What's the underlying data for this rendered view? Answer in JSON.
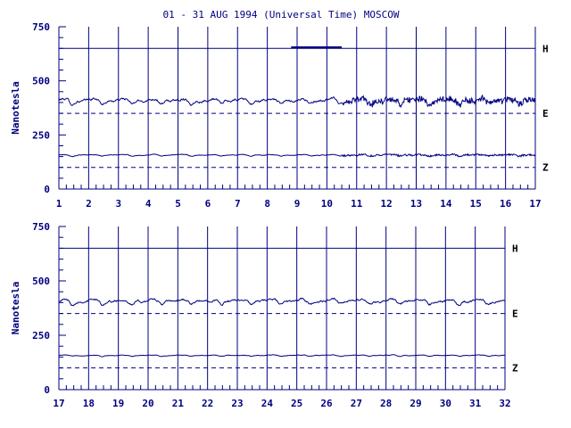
{
  "title": "01 - 31 AUG 1994 (Universal Time) MOSCOW",
  "colors": {
    "ink": "#000080",
    "label": "#000000",
    "background": "#ffffff"
  },
  "chart_data": [
    {
      "type": "line",
      "ylabel": "Nanotesla",
      "ylim": [
        0,
        750
      ],
      "xlim": [
        1,
        17
      ],
      "x_ticks": [
        "1",
        "2",
        "3",
        "4",
        "5",
        "6",
        "7",
        "8",
        "9",
        "10",
        "11",
        "12",
        "13",
        "14",
        "15",
        "16",
        "17"
      ],
      "y_ticks": [
        "0",
        "250",
        "500",
        "750"
      ],
      "grid": "vertical lines at each day",
      "series": [
        {
          "name": "H",
          "baseline": 650,
          "line_style": "solid",
          "level": 650
        },
        {
          "name": "E",
          "baseline": 350,
          "line_style": "dashed",
          "level": 412,
          "variation_amplitude": 22
        },
        {
          "name": "Z",
          "baseline": 100,
          "line_style": "dashed",
          "level": 158,
          "variation_amplitude": 6
        }
      ],
      "annotations": [
        {
          "text": "short H trace segment",
          "x_from": 8.8,
          "x_to": 10.5,
          "y": 655
        }
      ]
    },
    {
      "type": "line",
      "ylabel": "Nanotesla",
      "ylim": [
        0,
        750
      ],
      "xlim": [
        17,
        32
      ],
      "x_ticks": [
        "17",
        "18",
        "19",
        "20",
        "21",
        "22",
        "23",
        "24",
        "25",
        "26",
        "27",
        "28",
        "29",
        "30",
        "31",
        "32"
      ],
      "y_ticks": [
        "0",
        "250",
        "500",
        "750"
      ],
      "grid": "vertical lines at each day",
      "series": [
        {
          "name": "H",
          "baseline": 650,
          "line_style": "solid",
          "level": 650
        },
        {
          "name": "E",
          "baseline": 350,
          "line_style": "dashed",
          "level": 410,
          "variation_amplitude": 20
        },
        {
          "name": "Z",
          "baseline": 100,
          "line_style": "dashed",
          "level": 158,
          "variation_amplitude": 5
        }
      ]
    }
  ]
}
